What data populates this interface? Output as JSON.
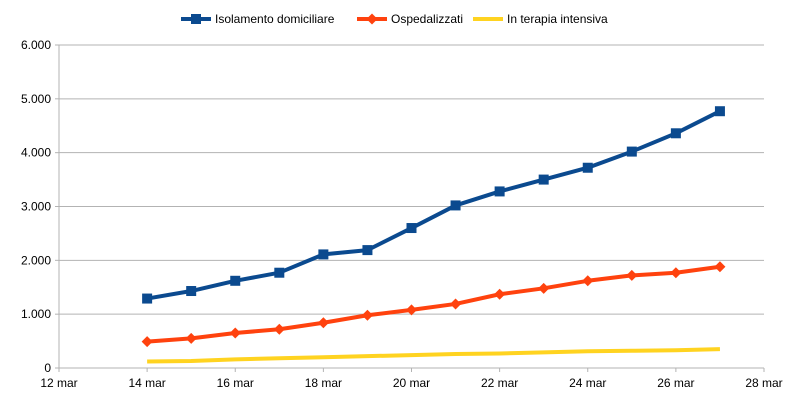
{
  "chart_data": {
    "type": "line",
    "title": "",
    "xlabel": "",
    "ylabel": "",
    "xlim": [
      "12 mar",
      "28 mar"
    ],
    "ylim": [
      0,
      6000
    ],
    "grid": "horizontal",
    "legend_position": "top",
    "x_ticks": [
      "12 mar",
      "14 mar",
      "16 mar",
      "18 mar",
      "20 mar",
      "22 mar",
      "24 mar",
      "26 mar",
      "28 mar"
    ],
    "y_ticks": [
      "0",
      "1.000",
      "2.000",
      "3.000",
      "4.000",
      "5.000",
      "6.000"
    ],
    "x": [
      "14 mar",
      "15 mar",
      "16 mar",
      "17 mar",
      "18 mar",
      "19 mar",
      "20 mar",
      "21 mar",
      "22 mar",
      "23 mar",
      "24 mar",
      "25 mar",
      "26 mar",
      "27 mar"
    ],
    "series": [
      {
        "name": "Isolamento domiciliare",
        "color": "#0b4a8f",
        "marker": "square",
        "values": [
          1290,
          1430,
          1620,
          1770,
          2110,
          2190,
          2600,
          3020,
          3280,
          3500,
          3720,
          4020,
          4360,
          4770
        ]
      },
      {
        "name": "Ospedalizzati",
        "color": "#ff420e",
        "marker": "diamond",
        "values": [
          490,
          550,
          650,
          720,
          840,
          980,
          1080,
          1190,
          1370,
          1480,
          1620,
          1720,
          1770,
          1880
        ]
      },
      {
        "name": "In terapia intensiva",
        "color": "#ffd320",
        "marker": "none",
        "values": [
          120,
          130,
          160,
          180,
          200,
          220,
          240,
          260,
          270,
          290,
          310,
          320,
          330,
          350
        ]
      }
    ]
  }
}
